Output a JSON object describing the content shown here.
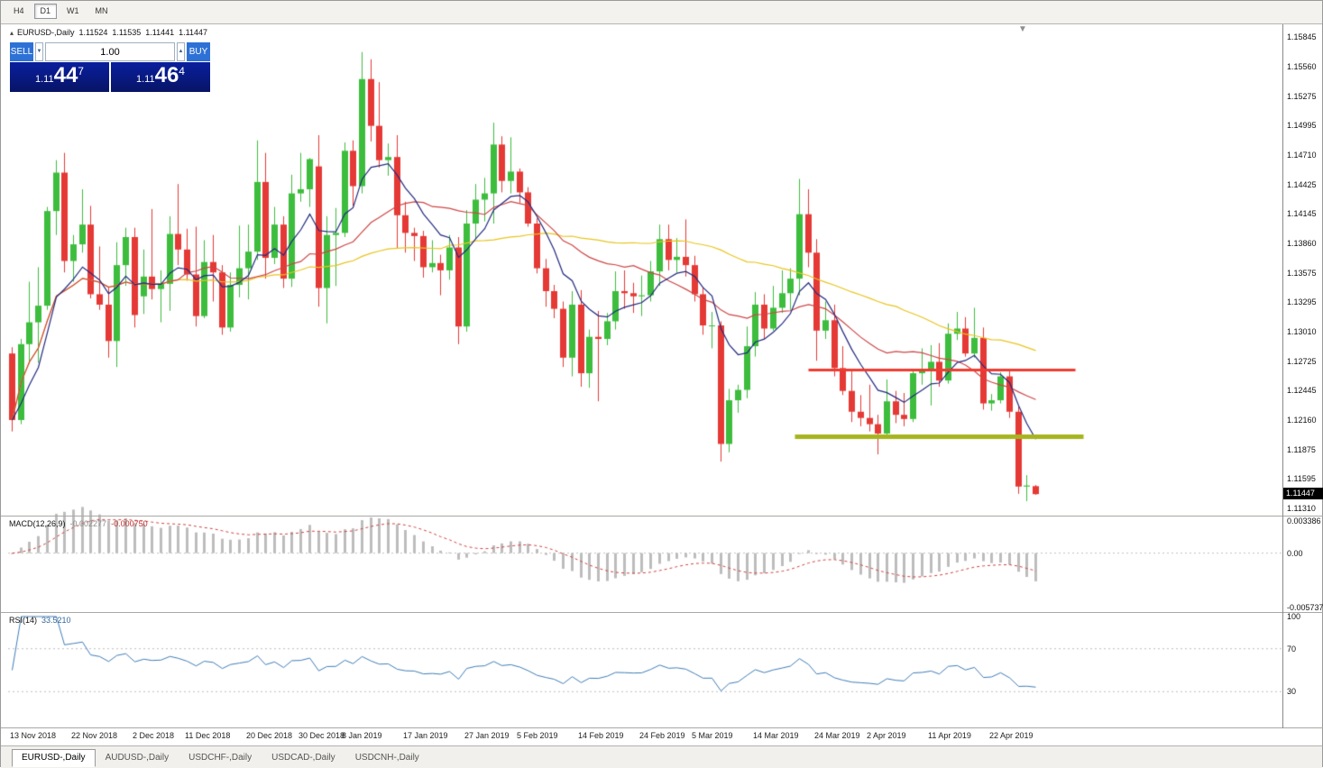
{
  "toolbar": {
    "timeframes": [
      {
        "label": "H4",
        "active": false
      },
      {
        "label": "D1",
        "active": true
      },
      {
        "label": "W1",
        "active": false
      },
      {
        "label": "MN",
        "active": false
      }
    ]
  },
  "header": {
    "symbol": "EURUSD-,Daily",
    "open": "1.11524",
    "high": "1.11535",
    "low": "1.11441",
    "close": "1.11447"
  },
  "trade_panel": {
    "sell_label": "SELL",
    "buy_label": "BUY",
    "volume": "1.00",
    "sell_price": {
      "prefix": "1.11",
      "big": "44",
      "sup": "7"
    },
    "buy_price": {
      "prefix": "1.11",
      "big": "46",
      "sup": "4"
    }
  },
  "icons": {
    "collapse_arrow": "▴",
    "spinner_up": "▲",
    "spinner_down": "▼",
    "shift_marker": "▼"
  },
  "colors": {
    "candle_up": "#3dbd3d",
    "candle_down": "#e53935",
    "ma_slow_yellow": "#e8c41d",
    "ma_mid_red": "#cf4545",
    "ma_fast_blue": "#232a80",
    "macd_hist": "#bdbdbd",
    "macd_signal": "#d04040",
    "macd_zero": "#c0c0c0",
    "rsi_line": "#3f7cb6",
    "rsi_level": "#bcbcbc",
    "hline_red": "#f03b30",
    "hline_olive": "#a6b41f",
    "trade_button_blue": "#2e71d6",
    "trade_price_box_blue": "#0a1f9e",
    "price_tag_bg": "#000000"
  },
  "chart": {
    "type": "candlestick",
    "symbol": "EURUSD-,Daily",
    "current_price": "1.11447",
    "ylim": [
      1.1131,
      1.15845
    ],
    "price_scale": [
      "1.15845",
      "1.15560",
      "1.15275",
      "1.14995",
      "1.14710",
      "1.14425",
      "1.14145",
      "1.13860",
      "1.13575",
      "1.13295",
      "1.13010",
      "1.12725",
      "1.12445",
      "1.12160",
      "1.11875",
      "1.11595",
      "1.11310"
    ],
    "hlines": [
      {
        "price": 1.1264,
        "i1": 91,
        "i2": 121.5,
        "color": "#f03b30",
        "width": 3
      },
      {
        "price": 1.12,
        "i1": 89.5,
        "i2": 122.5,
        "color": "#a6b41f",
        "width": 5
      }
    ],
    "ma": [
      {
        "period": 50,
        "type": "sma",
        "color": "#e8c41d"
      },
      {
        "period": 20,
        "type": "sma",
        "color": "#cf4545"
      },
      {
        "period": 8,
        "type": "ema",
        "color": "#232a80"
      }
    ],
    "date_axis": [
      {
        "label": "13 Nov 2018",
        "i": 1
      },
      {
        "label": "22 Nov 2018",
        "i": 8
      },
      {
        "label": "2 Dec 2018",
        "i": 15
      },
      {
        "label": "11 Dec 2018",
        "i": 21
      },
      {
        "label": "20 Dec 2018",
        "i": 28
      },
      {
        "label": "30 Dec 2018",
        "i": 34
      },
      {
        "label": "8 Jan 2019",
        "i": 39
      },
      {
        "label": "17 Jan 2019",
        "i": 46
      },
      {
        "label": "27 Jan 2019",
        "i": 53
      },
      {
        "label": "5 Feb 2019",
        "i": 59
      },
      {
        "label": "14 Feb 2019",
        "i": 66
      },
      {
        "label": "24 Feb 2019",
        "i": 73
      },
      {
        "label": "5 Mar 2019",
        "i": 79
      },
      {
        "label": "14 Mar 2019",
        "i": 86
      },
      {
        "label": "24 Mar 2019",
        "i": 93
      },
      {
        "label": "2 Apr 2019",
        "i": 99
      },
      {
        "label": "11 Apr 2019",
        "i": 106
      },
      {
        "label": "22 Apr 2019",
        "i": 113
      }
    ],
    "candles": [
      [
        1.128,
        1.1286,
        1.1205,
        1.1216
      ],
      [
        1.1216,
        1.1294,
        1.1212,
        1.1289
      ],
      [
        1.1289,
        1.1349,
        1.127,
        1.131
      ],
      [
        1.131,
        1.1363,
        1.1271,
        1.1326
      ],
      [
        1.1326,
        1.1421,
        1.1322,
        1.1417
      ],
      [
        1.1417,
        1.1466,
        1.1394,
        1.1454
      ],
      [
        1.1454,
        1.1473,
        1.1358,
        1.1369
      ],
      [
        1.1369,
        1.1394,
        1.1349,
        1.1385
      ],
      [
        1.1385,
        1.1438,
        1.1377,
        1.1404
      ],
      [
        1.1404,
        1.1422,
        1.1333,
        1.1337
      ],
      [
        1.1337,
        1.1383,
        1.1322,
        1.1327
      ],
      [
        1.1327,
        1.1344,
        1.1276,
        1.1292
      ],
      [
        1.1292,
        1.1387,
        1.1267,
        1.1365
      ],
      [
        1.1365,
        1.1401,
        1.1345,
        1.1392
      ],
      [
        1.1392,
        1.1401,
        1.1305,
        1.1317
      ],
      [
        1.1335,
        1.138,
        1.1318,
        1.1354
      ],
      [
        1.1354,
        1.1419,
        1.1332,
        1.1342
      ],
      [
        1.1342,
        1.136,
        1.131,
        1.1347
      ],
      [
        1.1347,
        1.1412,
        1.1321,
        1.1395
      ],
      [
        1.1395,
        1.1443,
        1.1365,
        1.138
      ],
      [
        1.138,
        1.14,
        1.135,
        1.1356
      ],
      [
        1.1356,
        1.1402,
        1.1306,
        1.1316
      ],
      [
        1.1316,
        1.1389,
        1.1314,
        1.1368
      ],
      [
        1.1368,
        1.1394,
        1.133,
        1.1358
      ],
      [
        1.1358,
        1.1365,
        1.1298,
        1.1305
      ],
      [
        1.1305,
        1.1358,
        1.1301,
        1.1346
      ],
      [
        1.1346,
        1.1403,
        1.1334,
        1.1362
      ],
      [
        1.1362,
        1.1404,
        1.1332,
        1.1378
      ],
      [
        1.1378,
        1.1485,
        1.137,
        1.1445
      ],
      [
        1.1445,
        1.1473,
        1.1352,
        1.1372
      ],
      [
        1.1372,
        1.1421,
        1.1366,
        1.1404
      ],
      [
        1.1404,
        1.1412,
        1.1343,
        1.1352
      ],
      [
        1.1352,
        1.1452,
        1.1344,
        1.1434
      ],
      [
        1.1434,
        1.1473,
        1.1426,
        1.1438
      ],
      [
        1.1438,
        1.1468,
        1.1421,
        1.1467
      ],
      [
        1.146,
        1.149,
        1.1325,
        1.1343
      ],
      [
        1.1343,
        1.1412,
        1.1309,
        1.1394
      ],
      [
        1.1394,
        1.142,
        1.1345,
        1.1396
      ],
      [
        1.1396,
        1.1483,
        1.1392,
        1.1475
      ],
      [
        1.1475,
        1.1485,
        1.1422,
        1.1441
      ],
      [
        1.1441,
        1.157,
        1.1434,
        1.1544
      ],
      [
        1.1544,
        1.1563,
        1.1484,
        1.1499
      ],
      [
        1.1499,
        1.1541,
        1.1459,
        1.1466
      ],
      [
        1.1466,
        1.1482,
        1.1451,
        1.1469
      ],
      [
        1.1469,
        1.149,
        1.1381,
        1.1413
      ],
      [
        1.1413,
        1.1426,
        1.1377,
        1.1396
      ],
      [
        1.1396,
        1.1401,
        1.1369,
        1.1393
      ],
      [
        1.1393,
        1.1398,
        1.1353,
        1.1363
      ],
      [
        1.1363,
        1.1389,
        1.1358,
        1.1367
      ],
      [
        1.1367,
        1.1375,
        1.1336,
        1.136
      ],
      [
        1.136,
        1.1394,
        1.1351,
        1.1382
      ],
      [
        1.1382,
        1.1392,
        1.1289,
        1.1306
      ],
      [
        1.1306,
        1.1418,
        1.1301,
        1.1405
      ],
      [
        1.1405,
        1.1443,
        1.139,
        1.1428
      ],
      [
        1.1428,
        1.1449,
        1.1407,
        1.1434
      ],
      [
        1.1434,
        1.1502,
        1.1405,
        1.1481
      ],
      [
        1.1481,
        1.1489,
        1.1435,
        1.1446
      ],
      [
        1.1446,
        1.1488,
        1.1434,
        1.1455
      ],
      [
        1.1455,
        1.1458,
        1.1425,
        1.1435
      ],
      [
        1.1435,
        1.144,
        1.1402,
        1.1405
      ],
      [
        1.1405,
        1.141,
        1.1357,
        1.1362
      ],
      [
        1.1362,
        1.1371,
        1.1325,
        1.134
      ],
      [
        1.134,
        1.1346,
        1.1314,
        1.1323
      ],
      [
        1.1323,
        1.133,
        1.1267,
        1.1276
      ],
      [
        1.1276,
        1.134,
        1.1258,
        1.1327
      ],
      [
        1.1327,
        1.1341,
        1.1248,
        1.1261
      ],
      [
        1.1261,
        1.1303,
        1.1247,
        1.1296
      ],
      [
        1.1296,
        1.1321,
        1.1234,
        1.1294
      ],
      [
        1.1294,
        1.1319,
        1.1288,
        1.1311
      ],
      [
        1.1311,
        1.1359,
        1.1303,
        1.134
      ],
      [
        1.134,
        1.136,
        1.1323,
        1.1338
      ],
      [
        1.1338,
        1.1348,
        1.1319,
        1.1335
      ],
      [
        1.1335,
        1.1355,
        1.1316,
        1.1336
      ],
      [
        1.1336,
        1.1369,
        1.133,
        1.1359
      ],
      [
        1.1359,
        1.1404,
        1.1345,
        1.139
      ],
      [
        1.139,
        1.1404,
        1.136,
        1.137
      ],
      [
        1.137,
        1.1391,
        1.1358,
        1.1373
      ],
      [
        1.1373,
        1.1409,
        1.1354,
        1.1365
      ],
      [
        1.1365,
        1.1374,
        1.133,
        1.1337
      ],
      [
        1.1337,
        1.1344,
        1.1298,
        1.1307
      ],
      [
        1.1307,
        1.132,
        1.1285,
        1.1307
      ],
      [
        1.1307,
        1.1311,
        1.1176,
        1.1193
      ],
      [
        1.1193,
        1.1246,
        1.1185,
        1.1235
      ],
      [
        1.1235,
        1.125,
        1.1223,
        1.1245
      ],
      [
        1.1245,
        1.1306,
        1.1237,
        1.1287
      ],
      [
        1.1287,
        1.1339,
        1.1277,
        1.1327
      ],
      [
        1.1327,
        1.1337,
        1.1294,
        1.1304
      ],
      [
        1.1304,
        1.1345,
        1.1302,
        1.1324
      ],
      [
        1.1324,
        1.136,
        1.1319,
        1.1338
      ],
      [
        1.1338,
        1.1362,
        1.1322,
        1.1352
      ],
      [
        1.1352,
        1.1448,
        1.1336,
        1.1414
      ],
      [
        1.1414,
        1.1438,
        1.1363,
        1.1377
      ],
      [
        1.1377,
        1.139,
        1.1273,
        1.1302
      ],
      [
        1.1302,
        1.133,
        1.1294,
        1.1312
      ],
      [
        1.1312,
        1.1327,
        1.1258,
        1.1266
      ],
      [
        1.1266,
        1.1287,
        1.124,
        1.1244
      ],
      [
        1.1244,
        1.1263,
        1.1214,
        1.1224
      ],
      [
        1.1224,
        1.124,
        1.121,
        1.1218
      ],
      [
        1.1218,
        1.125,
        1.1205,
        1.1212
      ],
      [
        1.1212,
        1.1221,
        1.1183,
        1.1203
      ],
      [
        1.1203,
        1.1255,
        1.1201,
        1.1234
      ],
      [
        1.1234,
        1.1244,
        1.1213,
        1.1221
      ],
      [
        1.1221,
        1.1242,
        1.121,
        1.1217
      ],
      [
        1.1217,
        1.1264,
        1.1214,
        1.1261
      ],
      [
        1.1261,
        1.1285,
        1.125,
        1.1264
      ],
      [
        1.1264,
        1.1288,
        1.123,
        1.1272
      ],
      [
        1.1272,
        1.129,
        1.1248,
        1.1254
      ],
      [
        1.1254,
        1.1309,
        1.1251,
        1.1299
      ],
      [
        1.1299,
        1.132,
        1.1293,
        1.1304
      ],
      [
        1.1304,
        1.1315,
        1.1277,
        1.128
      ],
      [
        1.128,
        1.1324,
        1.1276,
        1.1295
      ],
      [
        1.1295,
        1.1305,
        1.1226,
        1.1232
      ],
      [
        1.1232,
        1.1241,
        1.1225,
        1.1235
      ],
      [
        1.1235,
        1.1262,
        1.1232,
        1.1258
      ],
      [
        1.1258,
        1.1263,
        1.1218,
        1.1224
      ],
      [
        1.1224,
        1.1229,
        1.1145,
        1.1152
      ],
      [
        1.1152,
        1.1163,
        1.1138,
        1.1153
      ],
      [
        1.11524,
        1.11535,
        1.11441,
        1.11447
      ]
    ]
  },
  "macd": {
    "label": "MACD(12,26,9)",
    "value_main": "-0.002277",
    "value_signal": "-0.000750",
    "params": [
      12,
      26,
      9
    ],
    "ylim": [
      -0.005737,
      0.003386
    ],
    "scale": [
      "0.003386",
      "0.00",
      "-0.005737"
    ]
  },
  "rsi": {
    "label": "RSI(14)",
    "value": "33.5210",
    "period": 14,
    "levels": [
      70,
      30
    ],
    "scale": [
      "100",
      "70",
      "30"
    ]
  },
  "tabs": [
    {
      "label": "EURUSD-,Daily",
      "active": true
    },
    {
      "label": "AUDUSD-,Daily",
      "active": false
    },
    {
      "label": "USDCHF-,Daily",
      "active": false
    },
    {
      "label": "USDCAD-,Daily",
      "active": false
    },
    {
      "label": "USDCNH-,Daily",
      "active": false
    }
  ]
}
